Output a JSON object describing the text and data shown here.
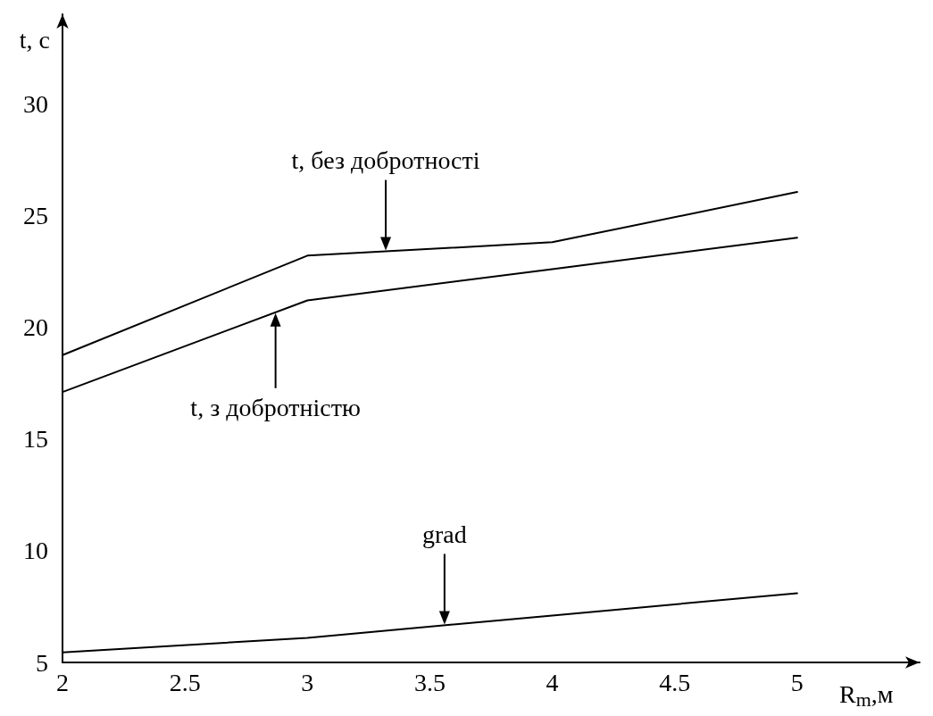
{
  "chart_data": {
    "type": "line",
    "xlabel": "R$_{m}$,м",
    "ylabel": "t, с",
    "xlim": [
      2,
      5.5
    ],
    "xticks": [
      2,
      2.5,
      3,
      3.5,
      4,
      4.5,
      5
    ],
    "ylim": [
      5,
      34
    ],
    "yticks": [
      5,
      10,
      15,
      20,
      25,
      30
    ],
    "x": [
      2,
      3,
      4,
      5
    ],
    "series": [
      {
        "name": "t, без добротності",
        "color": "#000000",
        "values": [
          18.75,
          23.2,
          23.8,
          26.05
        ]
      },
      {
        "name": "t, з добротністю",
        "color": "#000000",
        "values": [
          17.1,
          21.2,
          22.6,
          24.0
        ]
      },
      {
        "name": "grad",
        "color": "#000000",
        "values": [
          5.45,
          6.1,
          7.1,
          8.1
        ]
      }
    ],
    "grid": false,
    "marker": "none",
    "line_style": "solid"
  }
}
